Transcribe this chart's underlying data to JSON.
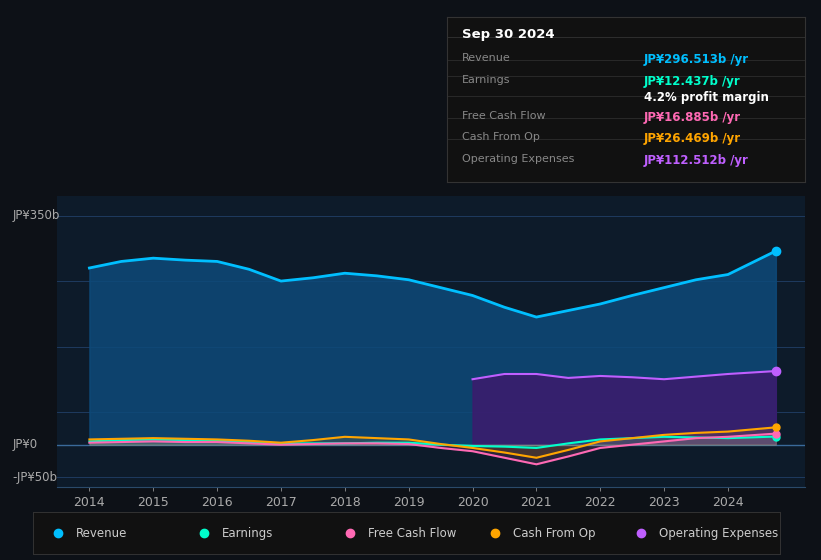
{
  "bg_color": "#0d1117",
  "plot_bg_color": "#0d1b2a",
  "grid_color": "#1e3a5f",
  "title": "Sep 30 2024",
  "ylabel_top": "JP¥350b",
  "ylabel_zero": "JP¥0",
  "ylabel_bottom": "-JP¥50b",
  "x_years": [
    2014,
    2014.5,
    2015,
    2015.5,
    2016,
    2016.5,
    2017,
    2017.5,
    2018,
    2018.5,
    2019,
    2019.5,
    2020,
    2020.5,
    2021,
    2021.5,
    2022,
    2022.5,
    2023,
    2023.5,
    2024,
    2024.75
  ],
  "revenue": [
    270,
    280,
    285,
    282,
    280,
    268,
    250,
    255,
    262,
    258,
    252,
    240,
    228,
    210,
    195,
    205,
    215,
    228,
    240,
    252,
    260,
    296
  ],
  "earnings": [
    5,
    7,
    8,
    7,
    6,
    4,
    2,
    2,
    2,
    3,
    3,
    0,
    -2,
    -3,
    -5,
    2,
    8,
    10,
    12,
    11,
    10,
    12.4
  ],
  "free_cash_flow": [
    3,
    4,
    5,
    4,
    4,
    2,
    0,
    1,
    2,
    2,
    1,
    -5,
    -10,
    -20,
    -30,
    -18,
    -5,
    0,
    5,
    10,
    12,
    16.9
  ],
  "cash_from_op": [
    8,
    9,
    10,
    9,
    8,
    6,
    3,
    7,
    12,
    10,
    8,
    1,
    -5,
    -12,
    -20,
    -8,
    5,
    10,
    15,
    18,
    20,
    26.5
  ],
  "operating_expenses_x": [
    2020,
    2020.5,
    2021,
    2021.5,
    2022,
    2022.5,
    2023,
    2023.5,
    2024,
    2024.75
  ],
  "operating_expenses": [
    100,
    108,
    108,
    102,
    105,
    103,
    100,
    104,
    108,
    112.5
  ],
  "revenue_color": "#00bfff",
  "earnings_color": "#00ffcc",
  "free_cash_flow_color": "#ff69b4",
  "cash_from_op_color": "#ffa500",
  "operating_expenses_color": "#bf5fff",
  "revenue_fill_color": "#0d4a7a",
  "operating_expenses_fill_color": "#3d1a6e",
  "xlim": [
    2013.5,
    2025.2
  ],
  "ylim": [
    -65,
    380
  ],
  "xticks": [
    2014,
    2015,
    2016,
    2017,
    2018,
    2019,
    2020,
    2021,
    2022,
    2023,
    2024
  ],
  "info_rows": [
    {
      "label": "Revenue",
      "value": "JP¥296.513b /yr",
      "color": "#00bfff",
      "is_subrow": false
    },
    {
      "label": "Earnings",
      "value": "JP¥12.437b /yr",
      "color": "#00ffcc",
      "is_subrow": false
    },
    {
      "label": "",
      "value": "4.2% profit margin",
      "color": "#ffffff",
      "is_subrow": true
    },
    {
      "label": "Free Cash Flow",
      "value": "JP¥16.885b /yr",
      "color": "#ff69b4",
      "is_subrow": false
    },
    {
      "label": "Cash From Op",
      "value": "JP¥26.469b /yr",
      "color": "#ffa500",
      "is_subrow": false
    },
    {
      "label": "Operating Expenses",
      "value": "JP¥112.512b /yr",
      "color": "#bf5fff",
      "is_subrow": false
    }
  ],
  "legend_items": [
    {
      "label": "Revenue",
      "color": "#00bfff"
    },
    {
      "label": "Earnings",
      "color": "#00ffcc"
    },
    {
      "label": "Free Cash Flow",
      "color": "#ff69b4"
    },
    {
      "label": "Cash From Op",
      "color": "#ffa500"
    },
    {
      "label": "Operating Expenses",
      "color": "#bf5fff"
    }
  ]
}
